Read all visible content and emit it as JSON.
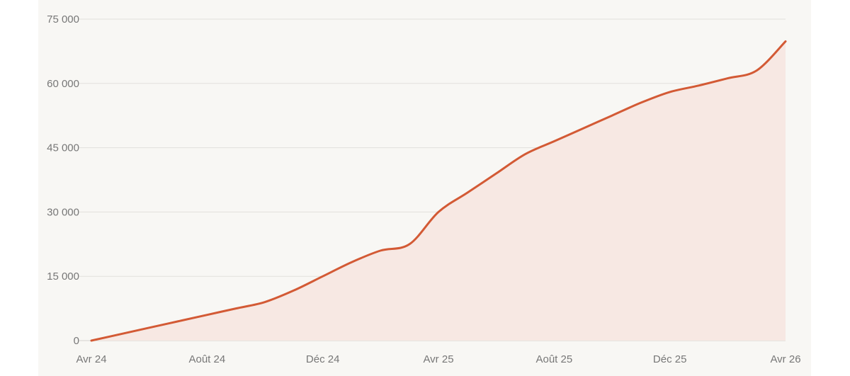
{
  "chart_data": {
    "type": "area",
    "title": "",
    "xlabel": "",
    "ylabel": "",
    "x_tick_labels": [
      "Avr 24",
      "Août 24",
      "Déc 24",
      "Avr 25",
      "Août 25",
      "Déc 25",
      "Avr 26"
    ],
    "y_tick_labels": [
      "0",
      "15 000",
      "30 000",
      "45 000",
      "60 000",
      "75 000"
    ],
    "y_ticks": [
      0,
      15000,
      30000,
      45000,
      60000,
      75000
    ],
    "ylim": [
      0,
      75000
    ],
    "x_range_months": [
      0,
      24
    ],
    "grid": true,
    "legend": "none",
    "colors": {
      "line": "#d35a35",
      "fill": "#f7e8e3",
      "grid": "#e2e0dc",
      "axis": "#d4d2ce"
    },
    "series": [
      {
        "values_by_month": [
          [
            0,
            0
          ],
          [
            1,
            1500
          ],
          [
            2,
            3000
          ],
          [
            3,
            4500
          ],
          [
            4,
            6000
          ],
          [
            5,
            7500
          ],
          [
            6,
            9000
          ],
          [
            7,
            11700
          ],
          [
            8,
            15000
          ],
          [
            9,
            18300
          ],
          [
            10,
            21000
          ],
          [
            11,
            22500
          ],
          [
            12,
            30000
          ],
          [
            13,
            34500
          ],
          [
            14,
            39000
          ],
          [
            15,
            43500
          ],
          [
            16,
            46500
          ],
          [
            17,
            49500
          ],
          [
            18,
            52500
          ],
          [
            19,
            55500
          ],
          [
            20,
            58000
          ],
          [
            21,
            59500
          ],
          [
            22,
            61200
          ],
          [
            23,
            63000
          ],
          [
            24,
            69800
          ]
        ]
      }
    ]
  }
}
